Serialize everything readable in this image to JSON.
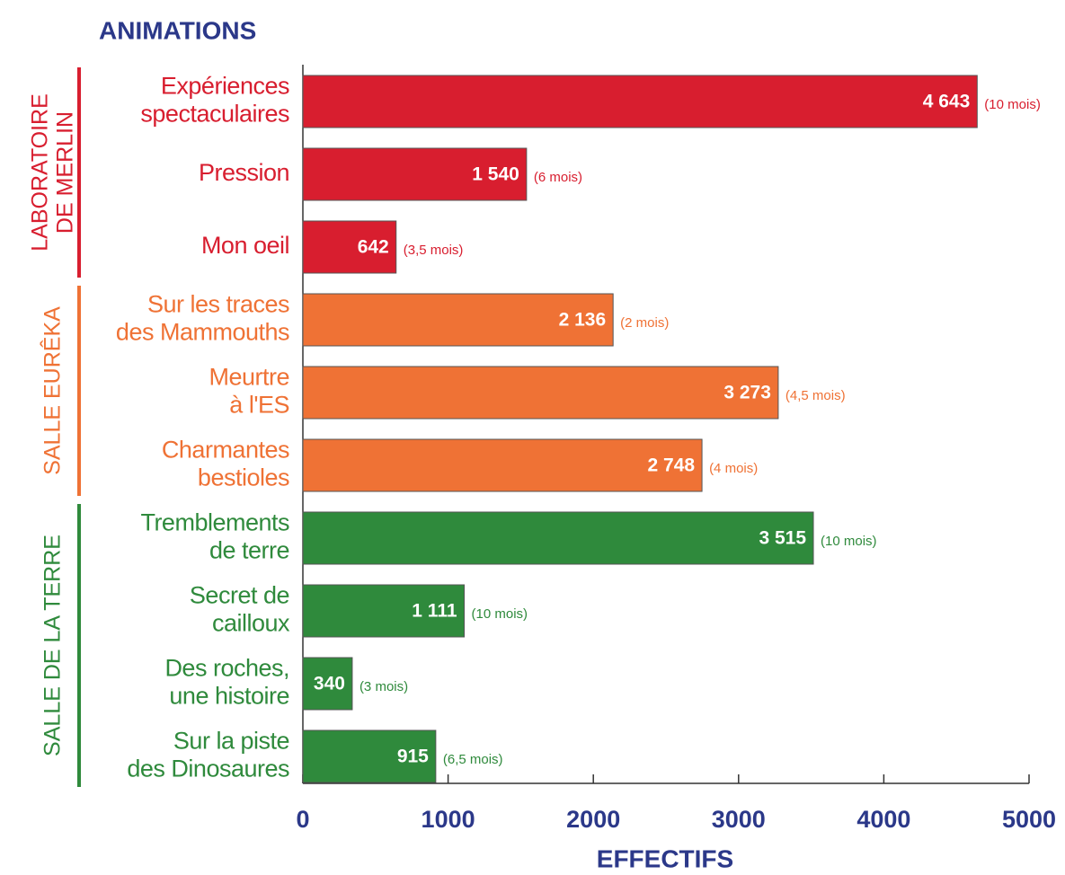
{
  "chart_data": {
    "type": "bar",
    "orientation": "horizontal",
    "title": "ANIMATIONS",
    "x_label": "EFFECTIFS",
    "categories": [
      [
        "Expériences",
        "spectaculaires"
      ],
      [
        "Pression"
      ],
      [
        "Mon oeil"
      ],
      [
        "Sur les traces",
        "des Mammouths"
      ],
      [
        "Meurtre",
        "à l'ES"
      ],
      [
        "Charmantes",
        "bestioles"
      ],
      [
        "Tremblements",
        "de terre"
      ],
      [
        "Secret de",
        "cailloux"
      ],
      [
        "Des roches,",
        "une histoire"
      ],
      [
        "Sur la piste",
        "des Dinosaures"
      ]
    ],
    "series": [
      {
        "name": [
          "LABORATOIRE",
          "DE MERLIN"
        ],
        "color": "#d81e2f",
        "values": [
          4643,
          1540,
          642,
          null,
          null,
          null,
          null,
          null,
          null,
          null
        ],
        "value_labels": [
          "4 643",
          "1 540",
          "642",
          null,
          null,
          null,
          null,
          null,
          null,
          null
        ]
      },
      {
        "name": [
          "SALLE EURÊKA"
        ],
        "color": "#ef7235",
        "values": [
          null,
          null,
          null,
          2136,
          3273,
          2748,
          null,
          null,
          null,
          null
        ],
        "value_labels": [
          null,
          null,
          null,
          "2 136",
          "3 273",
          "2 748",
          null,
          null,
          null,
          null
        ]
      },
      {
        "name": [
          "SALLE DE LA TERRE"
        ],
        "color": "#2f8a3c",
        "values": [
          null,
          null,
          null,
          null,
          null,
          null,
          3515,
          1111,
          340,
          915
        ],
        "value_labels": [
          null,
          null,
          null,
          null,
          null,
          null,
          "3 515",
          "1 111",
          "340",
          "915"
        ]
      }
    ],
    "annotations": [
      "(10 mois)",
      "(6 mois)",
      "(3,5 mois)",
      "(2 mois)",
      "(4,5 mois)",
      "(4 mois)",
      "(10 mois)",
      "(10 mois)",
      "(3 mois)",
      "(6,5 mois)"
    ],
    "xlim": [
      0,
      5000
    ],
    "xticks": [
      0,
      1000,
      2000,
      3000,
      4000,
      5000
    ],
    "grid": false
  }
}
